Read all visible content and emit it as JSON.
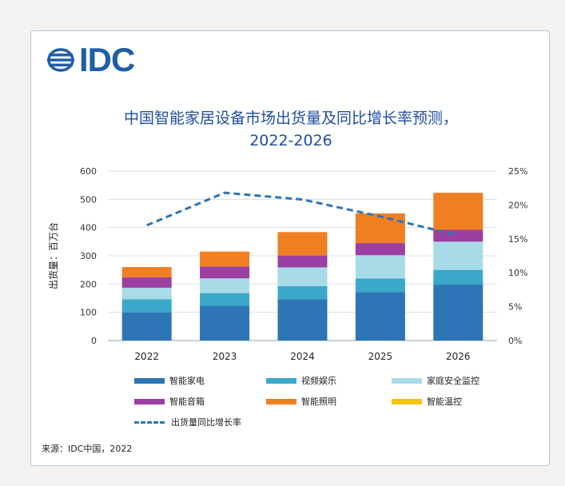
{
  "logo": {
    "text": "IDC"
  },
  "title": {
    "line1": "中国智能家居设备市场出货量及同比增长率预测，",
    "line2": "2022-2026"
  },
  "source": "来源：IDC中国，2022",
  "colors": {
    "smart_home_appliance": "#2e75b6",
    "video_entertainment": "#3aa9c9",
    "home_security": "#a8dbe8",
    "smart_audio": "#9b3fa3",
    "smart_lighting": "#f07f22",
    "smart_thermostat": "#f5c400",
    "growth_line": "#2f75b5",
    "title": "#1f4ea0"
  },
  "chart_data": {
    "type": "bar",
    "stacked": true,
    "categories": [
      "2022",
      "2023",
      "2024",
      "2025",
      "2026"
    ],
    "series": [
      {
        "name": "智能家电",
        "key": "smart_home_appliance",
        "values": [
          100,
          123,
          146,
          172,
          198
        ]
      },
      {
        "name": "视频娱乐",
        "key": "video_entertainment",
        "values": [
          46,
          45,
          47,
          48,
          52
        ]
      },
      {
        "name": "家庭安全监控",
        "key": "home_security",
        "values": [
          41,
          52,
          66,
          82,
          100
        ]
      },
      {
        "name": "智能音箱",
        "key": "smart_audio",
        "values": [
          37,
          42,
          42,
          43,
          42
        ]
      },
      {
        "name": "智能照明",
        "key": "smart_lighting",
        "values": [
          36,
          53,
          83,
          105,
          131
        ]
      },
      {
        "name": "智能温控",
        "key": "smart_thermostat",
        "values": [
          0,
          0,
          0,
          0,
          0
        ]
      }
    ],
    "line_series": {
      "name": "出货量同比增长率",
      "values": [
        17.0,
        21.8,
        20.8,
        18.3,
        15.5
      ],
      "axis": "right"
    },
    "ylabel": "出货量：百万台",
    "ylim": [
      0,
      600
    ],
    "yticks": [
      "0",
      "100",
      "200",
      "300",
      "400",
      "500",
      "600"
    ],
    "y2lim": [
      0,
      25
    ],
    "y2ticks": [
      "0%",
      "5%",
      "10%",
      "15%",
      "20%",
      "25%"
    ],
    "grid": true,
    "legend": "bottom"
  }
}
